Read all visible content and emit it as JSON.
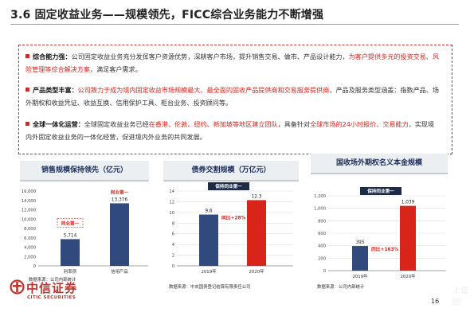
{
  "title": "3.6  固定收益业务——规模领先，FICC综合业务能力不断增强",
  "paragraphs": [
    {
      "label": "综合能力强：",
      "segments": [
        {
          "t": "公司固定收益业务充分发挥客户资源优势，深耕客户市场，提升销售交易、做市、产品设计能力，",
          "red": false
        },
        {
          "t": "为客户提供多元的投资交易、风险管理等综合解决方案",
          "red": true
        },
        {
          "t": "，满足客户需求。",
          "red": false
        }
      ]
    },
    {
      "label": "产品类型丰富：",
      "segments": [
        {
          "t": "公司致力于成为境内固定收益市场规模最大、最全面的固收产品提供商和交易服务提供商",
          "red": true
        },
        {
          "t": "，产品及服务类型涵盖：指数产品、场外期权和收益凭证、收益互换、信用保护工具、柜台业务、投资顾问等。",
          "red": false
        }
      ]
    },
    {
      "label": "全球一体化运营：",
      "segments": [
        {
          "t": "全球固定收益业务已经",
          "red": false
        },
        {
          "t": "在香港、伦敦、纽约、新加坡等地区建立团队",
          "red": true
        },
        {
          "t": "，具备针对",
          "red": false
        },
        {
          "t": "全球市场的24小时报价、交易能力",
          "red": true
        },
        {
          "t": "，实现境内外固定收益业务的一体化经营，促进境内外业务的共同发展。",
          "red": false
        }
      ]
    }
  ],
  "panels": [
    {
      "title": "销售规模保持领先（亿元）",
      "source": "数据来源：公司内部统计"
    },
    {
      "title": "债券交割规模（万亿元）",
      "source": "数据来源：中央国债登记结算有限责任公司"
    },
    {
      "title": "国收场外期权名义本金规模",
      "source": "数据来源：公司内部统计"
    }
  ],
  "chart_data": [
    {
      "type": "bar",
      "categories": [
        "利率债",
        "信用产品"
      ],
      "values": [
        5714,
        13376
      ],
      "value_labels": [
        "5,714",
        "13,376"
      ],
      "ylim": [
        0,
        16000
      ],
      "yticks": [
        "0",
        "2,000",
        "4,000",
        "6,000",
        "8,000",
        "10,000",
        "12,000",
        "14,000",
        "16,000"
      ],
      "annotations": [
        "同业第一",
        "同业第一"
      ],
      "colors": [
        "#314a7e",
        "#314a7e"
      ],
      "grid": false
    },
    {
      "type": "bar",
      "categories": [
        "2019年",
        "2020年"
      ],
      "values": [
        9.6,
        12.3
      ],
      "value_labels": [
        "9.6",
        "12.3"
      ],
      "ylim": [
        0,
        14
      ],
      "yticks": [
        "0",
        "2",
        "4",
        "6",
        "8",
        "10",
        "12",
        "14"
      ],
      "annotations": [
        "保持同业第一",
        "同比+28%"
      ],
      "colors": [
        "#314a7e",
        "#d9241c"
      ],
      "grid": true
    },
    {
      "type": "bar",
      "categories": [
        "2019年",
        "2020年"
      ],
      "values": [
        395,
        1039
      ],
      "value_labels": [
        "395",
        "1,039"
      ],
      "ylim": [
        0,
        1200
      ],
      "yticks": [
        "0",
        "200",
        "400",
        "600",
        "800",
        "1,000",
        "1,200"
      ],
      "annotations": [
        "保持同业第一",
        "同比+163%"
      ],
      "colors": [
        "#314a7e",
        "#d9241c"
      ],
      "grid": true
    }
  ],
  "footer": {
    "logo_cn": "中信证券",
    "logo_en": "CITIC SECURITIES",
    "page_number": "16",
    "corner_mark": "上证回"
  }
}
